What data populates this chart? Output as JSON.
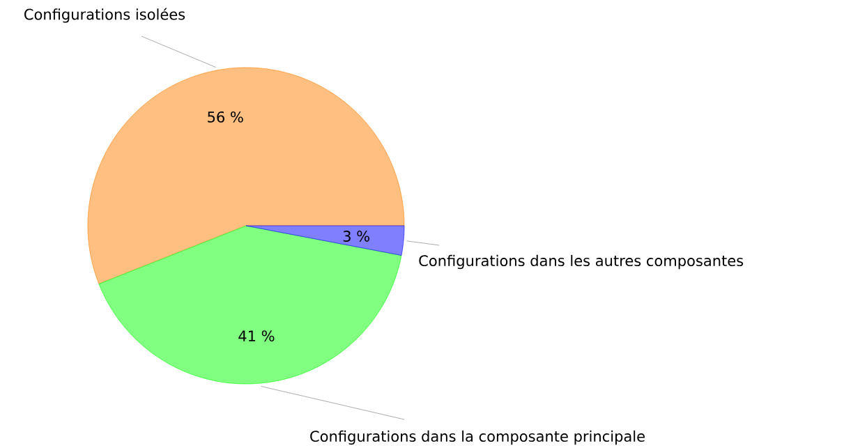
{
  "chart_data": {
    "type": "pie",
    "categories": [
      "Configurations isolées",
      "Configurations dans la composante principale",
      "Configurations dans les autres composantes"
    ],
    "values": [
      56,
      41,
      3
    ],
    "colors": [
      "#ffbf80",
      "#80ff80",
      "#8080ff"
    ],
    "value_labels": [
      "56 %",
      "41 %",
      "3 %"
    ]
  }
}
